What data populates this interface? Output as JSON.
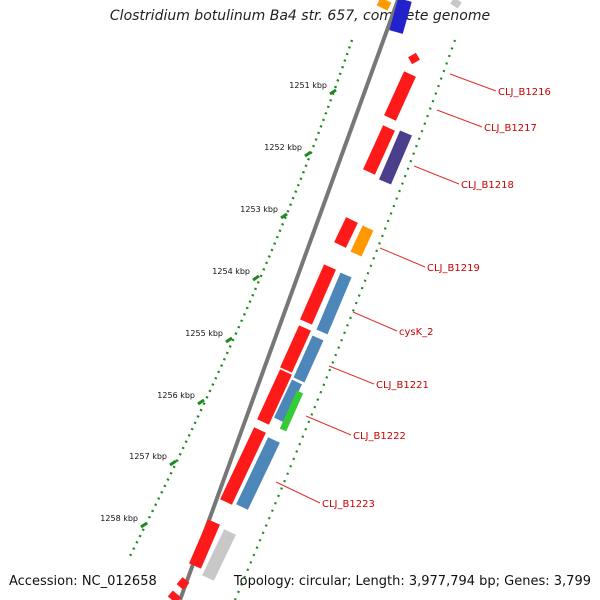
{
  "title": "Clostridium botulinum Ba4 str. 657, complete genome",
  "footer": {
    "accession": "Accession: NC_012658",
    "summary": "Topology: circular; Length: 3,977,794 bp; Genes: 3,799"
  },
  "colors": {
    "backbone": "#777777",
    "tick_dots": "#1e8a1e",
    "label_text": "#cc0000",
    "label_line": "#e03030",
    "forward_gene": "#ff1a1a",
    "reverse_gene": "#4d86b8",
    "purple_gene": "#4b3f8c",
    "orange_gene": "#ff9900",
    "green_gene": "#33cc33",
    "grey_gene": "#c8c8c8",
    "blue_gene": "#2222cc"
  },
  "ticks": [
    {
      "label": "1251 kbp"
    },
    {
      "label": "1252 kbp"
    },
    {
      "label": "1253 kbp"
    },
    {
      "label": "1254 kbp"
    },
    {
      "label": "1255 kbp"
    },
    {
      "label": "1256 kbp"
    },
    {
      "label": "1257 kbp"
    },
    {
      "label": "1258 kbp"
    }
  ],
  "gene_labels": [
    {
      "text": "CLJ_B1216"
    },
    {
      "text": "CLJ_B1217"
    },
    {
      "text": "CLJ_B1218"
    },
    {
      "text": "CLJ_B1219"
    },
    {
      "text": "cysK_2"
    },
    {
      "text": "CLJ_B1221"
    },
    {
      "text": "CLJ_B1222"
    },
    {
      "text": "CLJ_B1223"
    }
  ]
}
